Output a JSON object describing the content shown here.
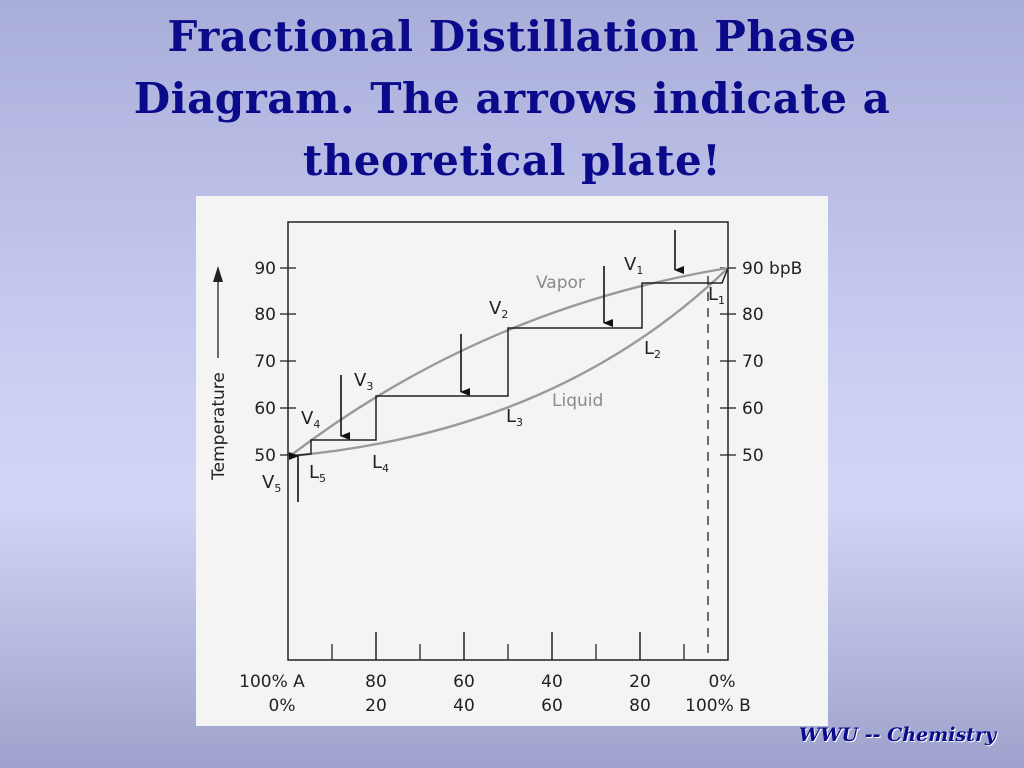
{
  "slide": {
    "title_lines": [
      "Fractional Distillation Phase",
      "Diagram.  The arrows indicate a",
      "theoretical plate!"
    ],
    "footer": "WWU -- Chemistry"
  },
  "diagram": {
    "y_axis_label": "Temperature",
    "left_ticks": [
      "90",
      "80",
      "70",
      "60",
      "50"
    ],
    "right_ticks": [
      "90 bpB",
      "80",
      "70",
      "60",
      "50"
    ],
    "x_top_labels": [
      "100% A",
      "80",
      "60",
      "40",
      "20",
      "0%"
    ],
    "x_bottom_labels": [
      "0%",
      "20",
      "40",
      "60",
      "80",
      "100% B"
    ],
    "curve_labels": {
      "vapor": "Vapor",
      "liquid": "Liquid"
    },
    "points": {
      "V1": "V",
      "V1_sub": "1",
      "V2": "V",
      "V2_sub": "2",
      "V3": "V",
      "V3_sub": "3",
      "V4": "V",
      "V4_sub": "4",
      "V5": "V",
      "V5_sub": "5",
      "L1": "L",
      "L1_sub": "1",
      "L2": "L",
      "L2_sub": "2",
      "L3": "L",
      "L3_sub": "3",
      "L4": "L",
      "L4_sub": "4",
      "L5": "L",
      "L5_sub": "5"
    },
    "colors": {
      "curves": "#9a9a9a",
      "ink": "#222222",
      "title": "#0a0a8a"
    }
  }
}
